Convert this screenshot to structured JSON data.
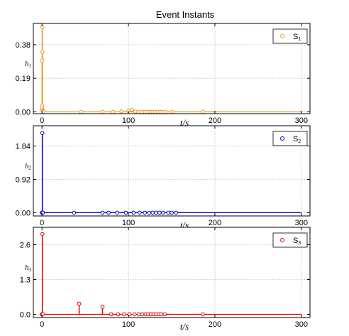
{
  "title": "Event Instants",
  "chart_data": [
    {
      "type": "scatter",
      "panel": 1,
      "color": "#f0961e",
      "ylabel_base": "h",
      "ylabel_sub": "1",
      "xlabel": "t/s",
      "legend_base": "S",
      "legend_sub": "1",
      "legend_position": "top-right",
      "grid": true,
      "xlim": [
        -10,
        310
      ],
      "ylim": [
        -0.01,
        0.5
      ],
      "xticks": [
        0,
        100,
        200,
        300
      ],
      "xtick_labels": [
        "0",
        "100",
        "200",
        "300"
      ],
      "yticks": [
        0.0,
        0.19,
        0.38
      ],
      "ytick_labels": [
        "0.00",
        "0.19",
        "0.38"
      ],
      "baseline": 0,
      "points": [
        {
          "x": 0.0,
          "y": 0.035
        },
        {
          "x": 0.1,
          "y": 0.02
        },
        {
          "x": 0.2,
          "y": 0.29
        },
        {
          "x": 0.3,
          "y": 0.48
        },
        {
          "x": 0.5,
          "y": 0.34
        },
        {
          "x": 0.7,
          "y": 0.01
        },
        {
          "x": 1.0,
          "y": 0.005
        },
        {
          "x": 1.5,
          "y": 0.0
        },
        {
          "x": 45,
          "y": 0.0
        },
        {
          "x": 70,
          "y": 0.0
        },
        {
          "x": 82,
          "y": 0.0
        },
        {
          "x": 92,
          "y": 0.003
        },
        {
          "x": 100,
          "y": 0.005
        },
        {
          "x": 104,
          "y": 0.012
        },
        {
          "x": 108,
          "y": 0.002
        },
        {
          "x": 112,
          "y": 0.0
        },
        {
          "x": 116,
          "y": 0.0
        },
        {
          "x": 119,
          "y": 0.0
        },
        {
          "x": 122,
          "y": 0.0
        },
        {
          "x": 125,
          "y": 0.0
        },
        {
          "x": 128,
          "y": 0.0
        },
        {
          "x": 131,
          "y": 0.0
        },
        {
          "x": 134,
          "y": 0.0
        },
        {
          "x": 137,
          "y": 0.0
        },
        {
          "x": 140,
          "y": 0.0
        },
        {
          "x": 143,
          "y": 0.0
        },
        {
          "x": 150,
          "y": 0.0
        },
        {
          "x": 186,
          "y": 0.0
        }
      ]
    },
    {
      "type": "scatter",
      "panel": 2,
      "color": "#0000cd",
      "ylabel_base": "h",
      "ylabel_sub": "2",
      "xlabel": "t/s",
      "legend_base": "S",
      "legend_sub": "2",
      "legend_position": "top-right",
      "grid": true,
      "xlim": [
        -10,
        310
      ],
      "ylim": [
        -0.09,
        2.4
      ],
      "xticks": [
        0,
        100,
        200,
        300
      ],
      "xtick_labels": [
        "0",
        "100",
        "200",
        "300"
      ],
      "yticks": [
        0.0,
        0.92,
        1.84
      ],
      "ytick_labels": [
        "0.00",
        "0.92",
        "1.84"
      ],
      "baseline": 0,
      "points": [
        {
          "x": 0.0,
          "y": 0.0
        },
        {
          "x": 0.2,
          "y": 0.0
        },
        {
          "x": 0.4,
          "y": 2.2
        },
        {
          "x": 0.6,
          "y": 0.0
        },
        {
          "x": 1.0,
          "y": 0.0
        },
        {
          "x": 37,
          "y": 0.0
        },
        {
          "x": 70,
          "y": 0.0
        },
        {
          "x": 77,
          "y": 0.0
        },
        {
          "x": 87,
          "y": 0.0
        },
        {
          "x": 97,
          "y": 0.0
        },
        {
          "x": 106,
          "y": 0.0
        },
        {
          "x": 113,
          "y": 0.0
        },
        {
          "x": 119,
          "y": 0.0
        },
        {
          "x": 124,
          "y": 0.0
        },
        {
          "x": 128,
          "y": 0.0
        },
        {
          "x": 132,
          "y": 0.0
        },
        {
          "x": 136,
          "y": 0.0
        },
        {
          "x": 140,
          "y": 0.0
        },
        {
          "x": 146,
          "y": 0.0
        },
        {
          "x": 150,
          "y": 0.0
        },
        {
          "x": 155,
          "y": 0.0
        }
      ]
    },
    {
      "type": "scatter",
      "panel": 3,
      "color": "#e60000",
      "ylabel_base": "h",
      "ylabel_sub": "3",
      "xlabel": "t/s",
      "legend_base": "S",
      "legend_sub": "3",
      "legend_position": "top-right",
      "grid": true,
      "xlim": [
        -10,
        310
      ],
      "ylim": [
        -0.12,
        3.25
      ],
      "xticks": [
        0,
        100,
        200,
        300
      ],
      "xtick_labels": [
        "0",
        "100",
        "200",
        "300"
      ],
      "yticks": [
        0.0,
        1.3,
        2.6
      ],
      "ytick_labels": [
        "0.0",
        "1.3",
        "2.6"
      ],
      "baseline": 0,
      "points": [
        {
          "x": 0.0,
          "y": 0.0
        },
        {
          "x": 0.2,
          "y": 0.0
        },
        {
          "x": 0.4,
          "y": 3.0
        },
        {
          "x": 0.6,
          "y": 0.0
        },
        {
          "x": 1.0,
          "y": 0.0
        },
        {
          "x": 43,
          "y": 0.4
        },
        {
          "x": 70,
          "y": 0.28
        },
        {
          "x": 80,
          "y": 0.0
        },
        {
          "x": 88,
          "y": 0.0
        },
        {
          "x": 95,
          "y": 0.0
        },
        {
          "x": 101,
          "y": 0.0
        },
        {
          "x": 107,
          "y": 0.0
        },
        {
          "x": 112,
          "y": 0.0
        },
        {
          "x": 116,
          "y": 0.0
        },
        {
          "x": 120,
          "y": 0.0
        },
        {
          "x": 123,
          "y": 0.0
        },
        {
          "x": 126,
          "y": 0.0
        },
        {
          "x": 129,
          "y": 0.0
        },
        {
          "x": 132,
          "y": 0.0
        },
        {
          "x": 135,
          "y": 0.0
        },
        {
          "x": 138,
          "y": 0.0
        },
        {
          "x": 142,
          "y": 0.0
        },
        {
          "x": 186,
          "y": 0.0
        }
      ]
    }
  ]
}
